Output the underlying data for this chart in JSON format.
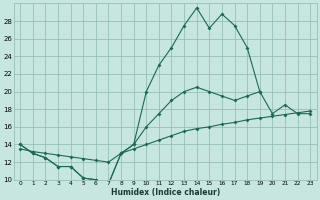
{
  "xlabel": "Humidex (Indice chaleur)",
  "bg_color": "#c8e6e0",
  "grid_color": "#8cb8b0",
  "line_color": "#1a6858",
  "x_all": [
    0,
    1,
    2,
    3,
    4,
    5,
    6,
    7,
    8,
    9,
    10,
    11,
    12,
    13,
    14,
    15,
    16,
    17,
    18,
    19,
    20,
    21,
    22,
    23
  ],
  "line_linear": [
    13.5,
    13.2,
    13.0,
    12.8,
    12.6,
    12.4,
    12.2,
    12.0,
    13.0,
    13.5,
    14.0,
    14.5,
    15.0,
    15.5,
    15.8,
    16.0,
    16.3,
    16.5,
    16.8,
    17.0,
    17.2,
    17.4,
    17.6,
    17.8
  ],
  "line_mid": [
    14,
    13,
    12.5,
    11.5,
    11.5,
    10.2,
    10,
    9.5,
    13,
    14,
    16,
    17.5,
    19,
    20,
    20.5,
    20,
    19.5,
    19,
    19.5,
    20,
    17.5,
    18.5,
    17.5,
    17.5
  ],
  "line_peak": [
    14,
    13,
    12.5,
    11.5,
    11.5,
    10.2,
    10,
    9.5,
    13,
    14,
    20,
    23,
    25,
    27.5,
    29.5,
    27.2,
    28.8,
    27.5,
    25,
    20,
    null,
    null,
    null,
    null
  ],
  "xlim": [
    -0.5,
    23.5
  ],
  "ylim": [
    10,
    30
  ],
  "yticks": [
    10,
    12,
    14,
    16,
    18,
    20,
    22,
    24,
    26,
    28
  ],
  "xticks": [
    0,
    1,
    2,
    3,
    4,
    5,
    6,
    7,
    8,
    9,
    10,
    11,
    12,
    13,
    14,
    15,
    16,
    17,
    18,
    19,
    20,
    21,
    22,
    23
  ]
}
